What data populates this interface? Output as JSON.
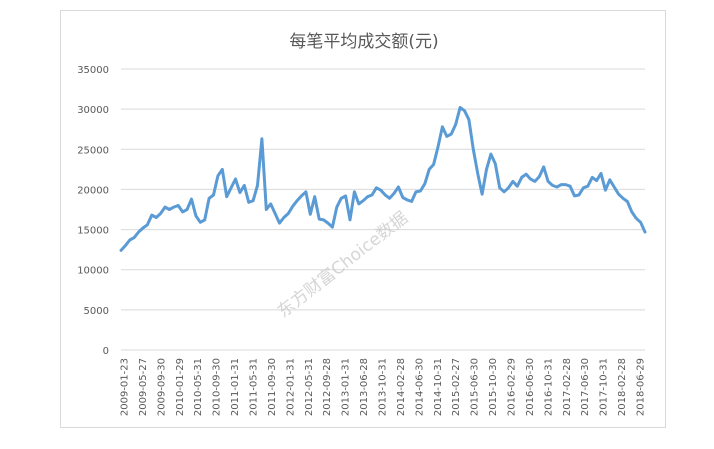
{
  "chart_data": {
    "type": "line",
    "title": "每笔平均成交额(元)",
    "xlabel": "",
    "ylabel": "",
    "ylim": [
      0,
      35000
    ],
    "yticks": [
      "0",
      "5000",
      "10000",
      "15000",
      "20000",
      "25000",
      "30000",
      "35000"
    ],
    "xticks": [
      "2009-01-23",
      "2009-05-27",
      "2009-09-30",
      "2010-01-29",
      "2010-05-31",
      "2010-09-30",
      "2011-01-31",
      "2011-05-31",
      "2011-09-30",
      "2012-01-31",
      "2012-05-31",
      "2012-09-28",
      "2013-01-31",
      "2013-06-28",
      "2013-10-31",
      "2014-02-28",
      "2014-06-30",
      "2014-10-31",
      "2015-02-27",
      "2015-06-30",
      "2015-10-30",
      "2016-02-29",
      "2016-06-30",
      "2016-10-31",
      "2017-02-28",
      "2017-06-30",
      "2017-10-31",
      "2018-02-28",
      "2018-06-29"
    ],
    "grid": true,
    "legend": "none",
    "color": "#5b9bd5",
    "series": [
      {
        "values": [
          12400,
          13000,
          13700,
          14000,
          14700,
          15200,
          15600,
          16800,
          16500,
          17000,
          17800,
          17500,
          17800,
          18000,
          17200,
          17500,
          18800,
          16700,
          15900,
          16200,
          18900,
          19300,
          21700,
          22500,
          19100,
          20200,
          21300,
          19600,
          20500,
          18400,
          18600,
          20500,
          26300,
          17500,
          18200,
          17000,
          15800,
          16500,
          17000,
          17900,
          18600,
          19200,
          19700,
          16900,
          19100,
          16300,
          16200,
          15800,
          15300,
          17800,
          18900,
          19200,
          16200,
          19700,
          18200,
          18600,
          19100,
          19300,
          20200,
          19900,
          19300,
          18900,
          19500,
          20300,
          19000,
          18700,
          18500,
          19700,
          19800,
          20700,
          22500,
          23100,
          25300,
          27800,
          26600,
          26900,
          28100,
          30200,
          29800,
          28700,
          25000,
          22000,
          19400,
          22500,
          24400,
          23200,
          20200,
          19700,
          20200,
          21000,
          20400,
          21500,
          21900,
          21300,
          21000,
          21600,
          22800,
          21000,
          20500,
          20300,
          20600,
          20600,
          20400,
          19200,
          19300,
          20200,
          20400,
          21500,
          21100,
          22000,
          19900,
          21200,
          20300,
          19400,
          18900,
          18500,
          17200,
          16400,
          15900,
          14700
        ]
      }
    ]
  },
  "watermark": "东方财富Choice数据"
}
